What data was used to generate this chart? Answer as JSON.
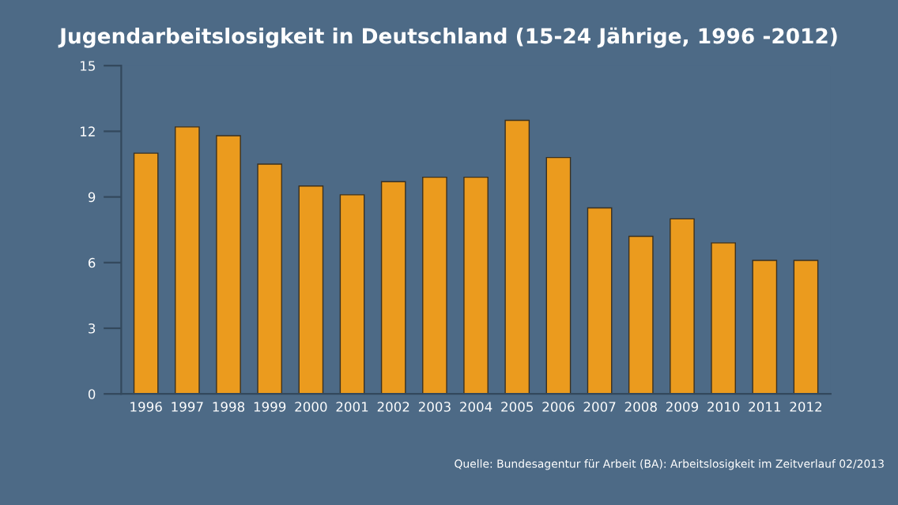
{
  "chart_data": {
    "type": "bar",
    "title": "Jugendarbeitslosigkeit in Deutschland (15-24 Jährige, 1996 -2012)",
    "categories": [
      "1996",
      "1997",
      "1998",
      "1999",
      "2000",
      "2001",
      "2002",
      "2003",
      "2004",
      "2005",
      "2006",
      "2007",
      "2008",
      "2009",
      "2010",
      "2011",
      "2012"
    ],
    "values": [
      11.0,
      12.2,
      11.8,
      10.5,
      9.5,
      9.1,
      9.7,
      9.9,
      9.9,
      12.5,
      10.8,
      8.5,
      7.2,
      8.0,
      6.9,
      6.1,
      6.1
    ],
    "color": "#eb9b1e",
    "ylim": [
      0,
      15
    ],
    "yticks": [
      0,
      3,
      6,
      9,
      12,
      15
    ],
    "grid": false,
    "annotations": [
      "Quelle: Bundesagentur für Arbeit (BA): Arbeitslosigkeit im Zeitverlauf 02/2013"
    ]
  }
}
